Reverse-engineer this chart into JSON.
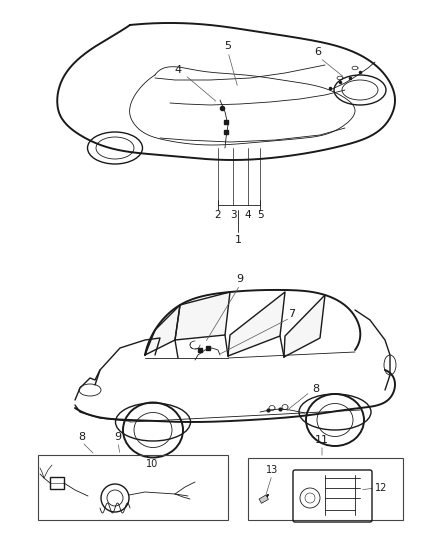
{
  "bg_color": "#ffffff",
  "line_color": "#1a1a1a",
  "label_color": "#1a1a1a",
  "fig_width": 4.38,
  "fig_height": 5.33,
  "dpi": 100
}
